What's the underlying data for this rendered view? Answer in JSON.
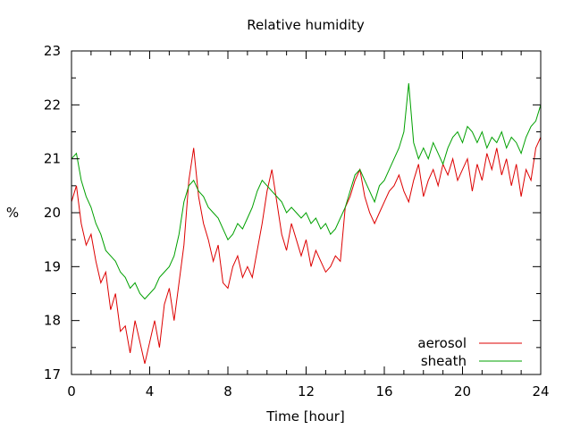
{
  "chart_data": {
    "type": "line",
    "title": "Relative humidity",
    "xlabel": "Time [hour]",
    "ylabel": "%",
    "xlim": [
      0,
      24
    ],
    "ylim": [
      17,
      23
    ],
    "xticks": [
      0,
      4,
      8,
      12,
      16,
      20,
      24
    ],
    "yticks": [
      17,
      18,
      19,
      20,
      21,
      22,
      23
    ],
    "grid": false,
    "legend_position": "bottom-right",
    "series": [
      {
        "name": "aerosol",
        "color": "#dd0000",
        "x": [
          0,
          0.25,
          0.5,
          0.75,
          1.0,
          1.25,
          1.5,
          1.75,
          2.0,
          2.25,
          2.5,
          2.75,
          3.0,
          3.25,
          3.5,
          3.75,
          4.0,
          4.25,
          4.5,
          4.75,
          5.0,
          5.25,
          5.5,
          5.75,
          6.0,
          6.25,
          6.5,
          6.75,
          7.0,
          7.25,
          7.5,
          7.75,
          8.0,
          8.25,
          8.5,
          8.75,
          9.0,
          9.25,
          9.5,
          9.75,
          10.0,
          10.25,
          10.5,
          10.75,
          11.0,
          11.25,
          11.5,
          11.75,
          12.0,
          12.25,
          12.5,
          12.75,
          13.0,
          13.25,
          13.5,
          13.75,
          14.0,
          14.25,
          14.5,
          14.75,
          15.0,
          15.25,
          15.5,
          15.75,
          16.0,
          16.25,
          16.5,
          16.75,
          17.0,
          17.25,
          17.5,
          17.75,
          18.0,
          18.25,
          18.5,
          18.75,
          19.0,
          19.25,
          19.5,
          19.75,
          20.0,
          20.25,
          20.5,
          20.75,
          21.0,
          21.25,
          21.5,
          21.75,
          22.0,
          22.25,
          22.5,
          22.75,
          23.0,
          23.25,
          23.5,
          23.75,
          24.0
        ],
        "y": [
          20.2,
          20.5,
          19.8,
          19.4,
          19.6,
          19.1,
          18.7,
          18.9,
          18.2,
          18.5,
          17.8,
          17.9,
          17.4,
          18.0,
          17.6,
          17.2,
          17.6,
          18.0,
          17.5,
          18.3,
          18.6,
          18.0,
          18.7,
          19.4,
          20.6,
          21.2,
          20.3,
          19.8,
          19.5,
          19.1,
          19.4,
          18.7,
          18.6,
          19.0,
          19.2,
          18.8,
          19.0,
          18.8,
          19.3,
          19.8,
          20.4,
          20.8,
          20.2,
          19.6,
          19.3,
          19.8,
          19.5,
          19.2,
          19.5,
          19.0,
          19.3,
          19.1,
          18.9,
          19.0,
          19.2,
          19.1,
          20.1,
          20.3,
          20.6,
          20.8,
          20.3,
          20.0,
          19.8,
          20.0,
          20.2,
          20.4,
          20.5,
          20.7,
          20.4,
          20.2,
          20.6,
          20.9,
          20.3,
          20.6,
          20.8,
          20.5,
          20.9,
          20.7,
          21.0,
          20.6,
          20.8,
          21.0,
          20.4,
          20.9,
          20.6,
          21.1,
          20.8,
          21.2,
          20.7,
          21.0,
          20.5,
          20.9,
          20.3,
          20.8,
          20.6,
          21.2,
          21.4
        ]
      },
      {
        "name": "sheath",
        "color": "#00a000",
        "x": [
          0,
          0.25,
          0.5,
          0.75,
          1.0,
          1.25,
          1.5,
          1.75,
          2.0,
          2.25,
          2.5,
          2.75,
          3.0,
          3.25,
          3.5,
          3.75,
          4.0,
          4.25,
          4.5,
          4.75,
          5.0,
          5.25,
          5.5,
          5.75,
          6.0,
          6.25,
          6.5,
          6.75,
          7.0,
          7.25,
          7.5,
          7.75,
          8.0,
          8.25,
          8.5,
          8.75,
          9.0,
          9.25,
          9.5,
          9.75,
          10.0,
          10.25,
          10.5,
          10.75,
          11.0,
          11.25,
          11.5,
          11.75,
          12.0,
          12.25,
          12.5,
          12.75,
          13.0,
          13.25,
          13.5,
          13.75,
          14.0,
          14.25,
          14.5,
          14.75,
          15.0,
          15.25,
          15.5,
          15.75,
          16.0,
          16.25,
          16.5,
          16.75,
          17.0,
          17.25,
          17.5,
          17.75,
          18.0,
          18.25,
          18.5,
          18.75,
          19.0,
          19.25,
          19.5,
          19.75,
          20.0,
          20.25,
          20.5,
          20.75,
          21.0,
          21.25,
          21.5,
          21.75,
          22.0,
          22.25,
          22.5,
          22.75,
          23.0,
          23.25,
          23.5,
          23.75,
          24.0
        ],
        "y": [
          21.0,
          21.1,
          20.6,
          20.3,
          20.1,
          19.8,
          19.6,
          19.3,
          19.2,
          19.1,
          18.9,
          18.8,
          18.6,
          18.7,
          18.5,
          18.4,
          18.5,
          18.6,
          18.8,
          18.9,
          19.0,
          19.2,
          19.6,
          20.2,
          20.5,
          20.6,
          20.4,
          20.3,
          20.1,
          20.0,
          19.9,
          19.7,
          19.5,
          19.6,
          19.8,
          19.7,
          19.9,
          20.1,
          20.4,
          20.6,
          20.5,
          20.4,
          20.3,
          20.2,
          20.0,
          20.1,
          20.0,
          19.9,
          20.0,
          19.8,
          19.9,
          19.7,
          19.8,
          19.6,
          19.7,
          19.9,
          20.1,
          20.4,
          20.7,
          20.8,
          20.6,
          20.4,
          20.2,
          20.5,
          20.6,
          20.8,
          21.0,
          21.2,
          21.5,
          22.4,
          21.3,
          21.0,
          21.2,
          21.0,
          21.3,
          21.1,
          20.9,
          21.2,
          21.4,
          21.5,
          21.3,
          21.6,
          21.5,
          21.3,
          21.5,
          21.2,
          21.4,
          21.3,
          21.5,
          21.2,
          21.4,
          21.3,
          21.1,
          21.4,
          21.6,
          21.7,
          22.0
        ]
      }
    ]
  }
}
